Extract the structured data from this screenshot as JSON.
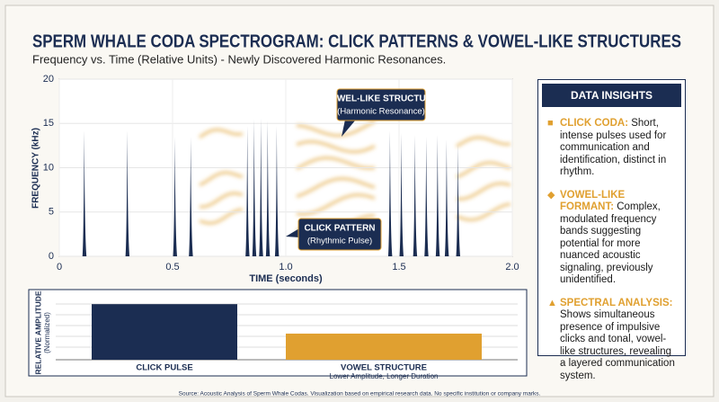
{
  "chart_data": [
    {
      "type": "spike",
      "title": "SPERM WHALE CODA SPECTROGRAM: CLICK PATTERNS & VOWEL-LIKE STRUCTURES",
      "subtitle": "Frequency vs. Time (Relative Units) - Newly Discovered Harmonic Resonances.",
      "x_label": "TIME (seconds)",
      "y_label": "FREQUENCY (kHz)",
      "x": [
        0.11,
        0.3,
        0.51,
        0.58,
        0.83,
        0.86,
        0.89,
        0.92,
        0.96,
        1.46,
        1.51,
        1.57,
        1.62,
        1.67,
        1.71,
        1.76
      ],
      "values": [
        14.2,
        14.2,
        13.5,
        13.5,
        14.7,
        15.5,
        15.6,
        15.3,
        14.7,
        14.2,
        13.9,
        13.7,
        13.5,
        13.7,
        13.2,
        12.7
      ],
      "color": "#1b2d52",
      "xlim": [
        0,
        2
      ],
      "xticks": [
        0,
        0.5,
        {
          "value": 1,
          "label": "1.0"
        },
        1.5,
        {
          "value": 2,
          "label": "2.0"
        }
      ],
      "ylim": [
        0,
        20
      ],
      "yticks": [
        0,
        5,
        10,
        15,
        20
      ],
      "grid": true,
      "annotations": [
        {
          "title": "VOWEL-LIKE STRUCTURE",
          "text": "(Harmonic Resonance)"
        },
        {
          "title": "CLICK PATTERN",
          "text": "(Rhythmic Pulse)"
        }
      ]
    },
    {
      "type": "bar",
      "y_label": "RELATIVE AMPLITUDE",
      "y_label_note": "(Normalized)",
      "categories": [
        "CLICK PULSE",
        "VOWEL STRUCTURE"
      ],
      "values": [
        1.0,
        0.47
      ],
      "colors": [
        "#1b2d52",
        "#e0a030"
      ],
      "ylim": [
        0,
        1.1
      ],
      "note": "Lower Amplitude, Longer Duration"
    }
  ],
  "insights": {
    "title": "DATA INSIGHTS",
    "items": [
      {
        "heading": "CLICK CODA:",
        "text": "Short, intense pulses used for communication and identification, distinct in rhythm."
      },
      {
        "heading": "VOWEL-LIKE FORMANT:",
        "text": "Complex, modulated frequency bands suggesting potential for more nuanced acoustic signaling, previously unidentified."
      },
      {
        "heading": "SPECTRAL ANALYSIS:",
        "text": "Shows simultaneous presence of impulsive clicks and tonal, vowel-like structures, revealing a layered communication system."
      }
    ]
  },
  "source": "Source: Acoustic Analysis of Sperm Whale Codas. Visualization based on empirical research data. No specific institution or company marks."
}
